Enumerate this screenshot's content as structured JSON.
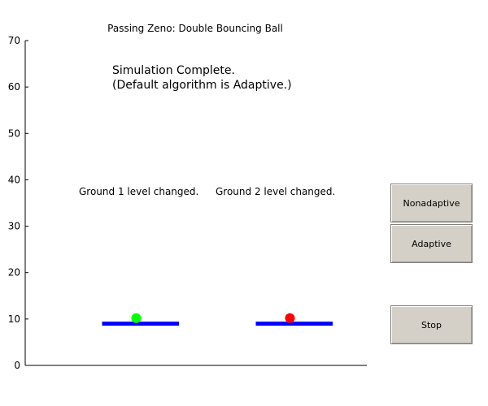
{
  "window": {
    "title": "Passing Zeno: Double Bouncing Ball"
  },
  "status": {
    "line1": "Simulation Complete.",
    "line2": "(Default algorithm is Adaptive.)"
  },
  "annotations": {
    "ground1": "Ground 1 level changed.",
    "ground2": "Ground 2 level changed."
  },
  "buttons": {
    "nonadaptive": "Nonadaptive",
    "adaptive": "Adaptive",
    "stop": "Stop"
  },
  "axis": {
    "y_range": [
      0,
      70
    ],
    "y_ticks": [
      "0",
      "10",
      "20",
      "30",
      "40",
      "50",
      "60",
      "70"
    ],
    "x_range": [
      0,
      20
    ]
  },
  "scene": {
    "grounds": [
      {
        "name": "ground-1",
        "x_start": 4.5,
        "x_end": 9.0,
        "y": 9.0,
        "color": "#0000ff"
      },
      {
        "name": "ground-2",
        "x_start": 13.5,
        "x_end": 18.0,
        "y": 9.0,
        "color": "#0000ff"
      }
    ],
    "balls": [
      {
        "name": "ball-1",
        "x": 6.5,
        "y": 10.2,
        "color": "#00ff00"
      },
      {
        "name": "ball-2",
        "x": 15.5,
        "y": 10.2,
        "color": "#ff0000"
      }
    ]
  }
}
